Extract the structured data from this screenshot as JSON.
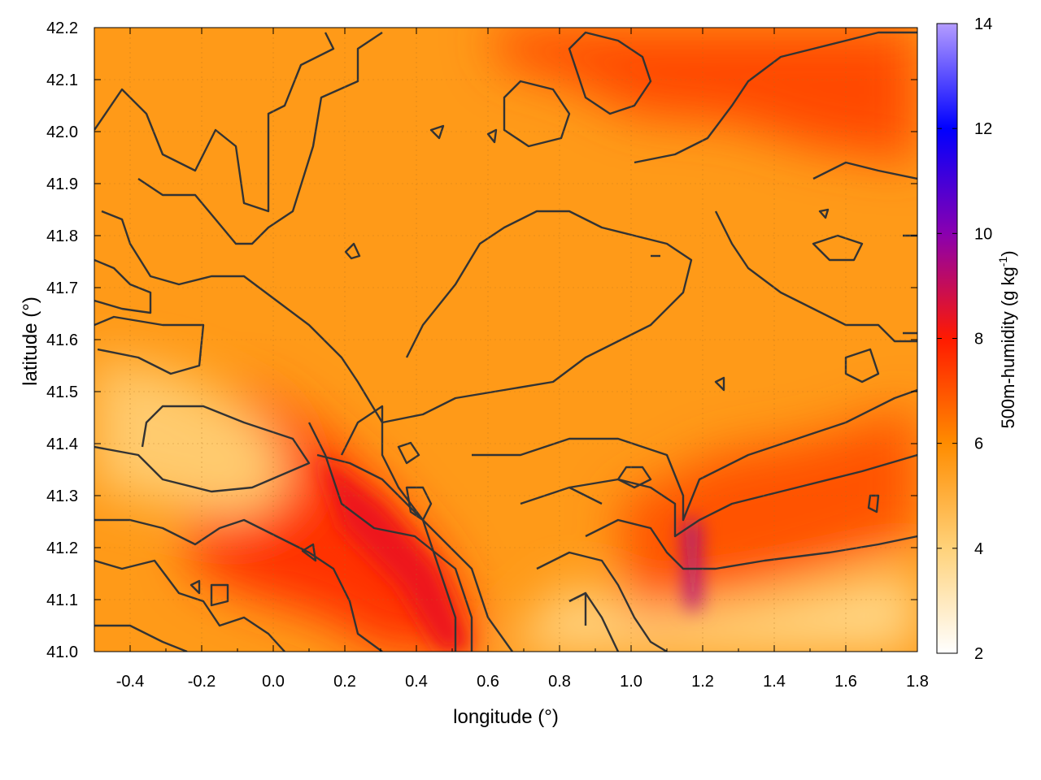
{
  "chart_data": {
    "type": "heatmap",
    "title": "",
    "xlabel": "longitude (°)",
    "ylabel": "latitude (°)",
    "xlim": [
      -0.5,
      1.8
    ],
    "ylim": [
      41.0,
      42.2
    ],
    "x_ticks": [
      "-0.4",
      "-0.2",
      "0.0",
      "0.2",
      "0.4",
      "0.6",
      "0.8",
      "1.0",
      "1.2",
      "1.4",
      "1.6",
      "1.8"
    ],
    "y_ticks": [
      "41.0",
      "41.1",
      "41.2",
      "41.3",
      "41.4",
      "41.5",
      "41.6",
      "41.7",
      "41.8",
      "41.9",
      "42.0",
      "42.1",
      "42.2"
    ],
    "grid": true,
    "colorbar": {
      "label_main": "500m-humidity (g kg",
      "label_sup": "-1",
      "label_end": ")",
      "range": [
        2,
        14
      ],
      "ticks": [
        "2",
        "4",
        "6",
        "8",
        "10",
        "12",
        "14"
      ],
      "stops": [
        {
          "value": 2,
          "color": "#ffffff"
        },
        {
          "value": 4,
          "color": "#ffd27a"
        },
        {
          "value": 6,
          "color": "#ff8c00"
        },
        {
          "value": 8,
          "color": "#ff1a00"
        },
        {
          "value": 10,
          "color": "#8a00b0"
        },
        {
          "value": 12,
          "color": "#0000ff"
        },
        {
          "value": 14,
          "color": "#b49cff"
        }
      ]
    },
    "humidity_regions": [
      {
        "name": "background",
        "level": 5.6
      },
      {
        "name": "northeast-high",
        "level": 7.2
      },
      {
        "name": "diagonal-plume",
        "level": 7.6
      },
      {
        "name": "southeast-streaks",
        "level": 7.0
      },
      {
        "name": "west-dry",
        "level": 4.2
      },
      {
        "name": "southeast-coast-dry",
        "level": 3.8
      }
    ],
    "contour_color": "#333333"
  }
}
